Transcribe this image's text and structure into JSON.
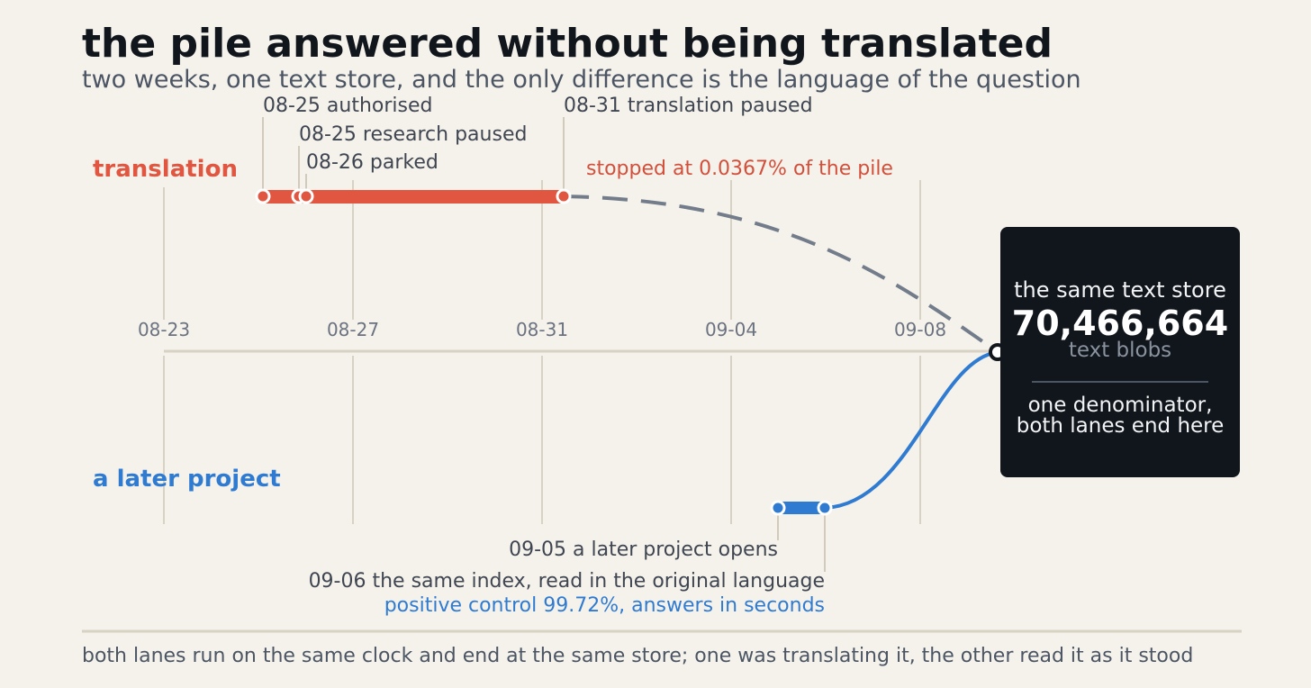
{
  "title": "the pile answered without being translated",
  "subtitle": "two weeks, one text store, and the only difference is the language of the question",
  "colors": {
    "translation": "#e05641",
    "later": "#2f7bd1",
    "dashed": "#737c8a",
    "grid": "#d8d2c4",
    "card": "#11161d"
  },
  "axis": {
    "ticks": [
      "08-23",
      "08-27",
      "08-31",
      "09-04",
      "09-08"
    ]
  },
  "lanes": {
    "translation": {
      "label": "translation",
      "bar_start": "08-25",
      "bar_end": "08-31",
      "events": [
        {
          "date": "08-25",
          "text": "08-25  authorised"
        },
        {
          "date": "08-25",
          "text": "08-25  research paused"
        },
        {
          "date": "08-26",
          "text": "08-26  parked"
        },
        {
          "date": "08-31",
          "text": "08-31  translation paused"
        }
      ],
      "note": "stopped at 0.0367% of the pile"
    },
    "later": {
      "label": "a later project",
      "bar_start": "09-05",
      "bar_end": "09-06",
      "events": [
        {
          "date": "09-05",
          "text": "09-05  a later project opens"
        },
        {
          "date": "09-06",
          "text": "09-06  the same index, read in the original language"
        }
      ],
      "note": "positive control 99.72%, answers in seconds"
    }
  },
  "card": {
    "heading": "the same text store",
    "number": "70,466,664",
    "unit": "text blobs",
    "line1": "one denominator,",
    "line2": "both lanes end here"
  },
  "footer": "both lanes run on the same clock and end at the same store; one was translating it, the other read it as it stood"
}
